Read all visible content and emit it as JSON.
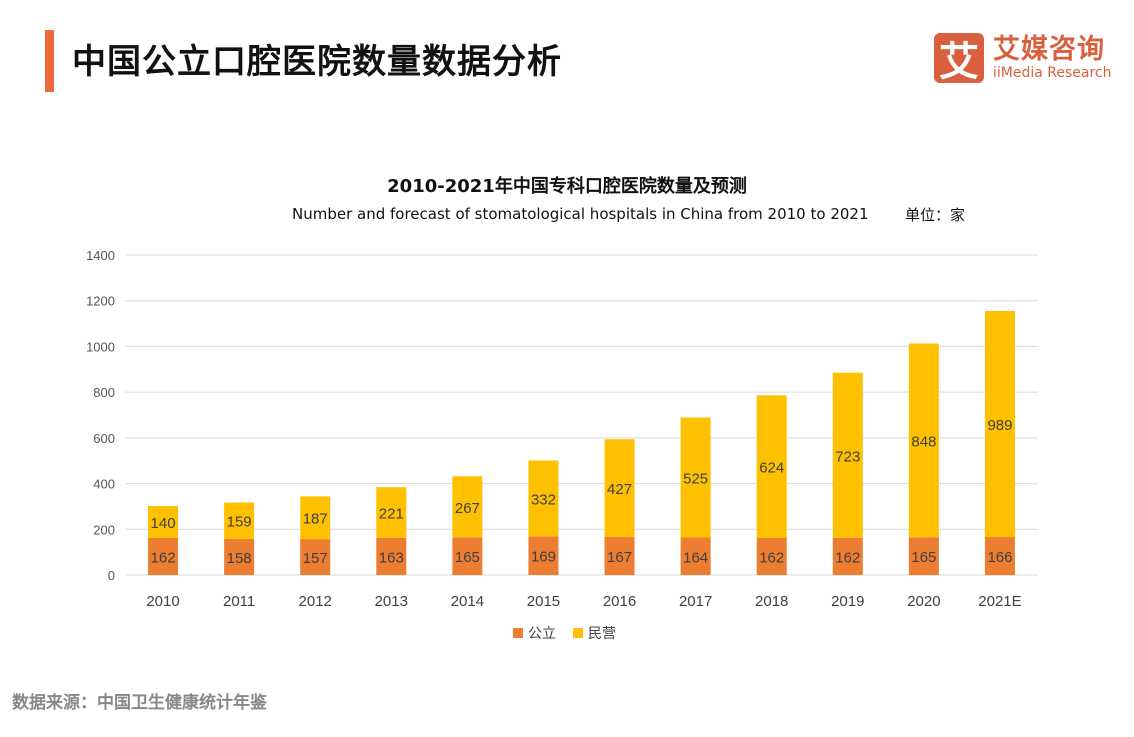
{
  "header": {
    "title": "中国公立口腔医院数量数据分析",
    "logo_cn": "艾媒咨询",
    "logo_en": "iiMedia Research",
    "logo_mark": "艾"
  },
  "unit": "单位：家",
  "source": "数据来源：中国卫生健康统计年鉴",
  "colors": {
    "accent": "#ef6a3a",
    "public": "#ed7d31",
    "private": "#ffc000",
    "logo": "#d95f3f"
  },
  "chart_data": {
    "type": "bar",
    "stacked": true,
    "title": "2010-2021年中国专科口腔医院数量及预测",
    "subtitle": "Number and forecast of stomatological hospitals in China from 2010 to 2021",
    "categories": [
      "2010",
      "2011",
      "2012",
      "2013",
      "2014",
      "2015",
      "2016",
      "2017",
      "2018",
      "2019",
      "2020",
      "2021E"
    ],
    "series": [
      {
        "name": "公立",
        "color": "#ed7d31",
        "values": [
          162,
          158,
          157,
          163,
          165,
          169,
          167,
          164,
          162,
          162,
          165,
          166
        ]
      },
      {
        "name": "民营",
        "color": "#ffc000",
        "values": [
          140,
          159,
          187,
          221,
          267,
          332,
          427,
          525,
          624,
          723,
          848,
          989
        ]
      }
    ],
    "ylim": [
      0,
      1400
    ],
    "yticks": [
      "0",
      "200",
      "400",
      "600",
      "800",
      "1000",
      "1200",
      "1400"
    ],
    "grid": true,
    "legend": "bottom"
  }
}
